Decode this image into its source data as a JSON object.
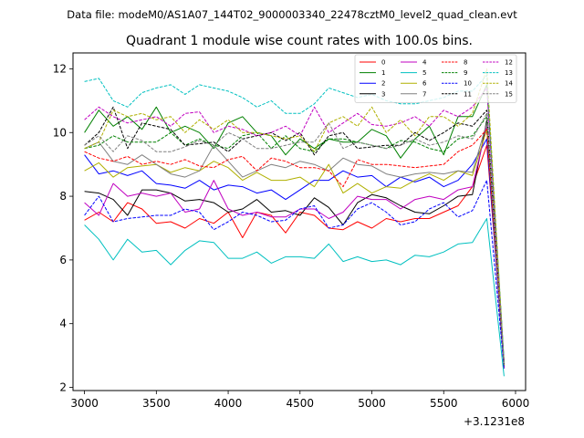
{
  "figure": {
    "suptitle": "Data file: modeM0/AS1A07_144T02_9000003340_22478cztM0_level2_quad_clean.evt"
  },
  "chart_data": {
    "type": "line",
    "title": "Quadrant 1 module wise count rates with 100.0s bins.",
    "xlabel": "",
    "ylabel": "",
    "x_offset_label": "+3.1231e8",
    "xlim": [
      2920,
      6070
    ],
    "ylim": [
      1.9,
      12.5
    ],
    "x_ticks": [
      3000,
      3500,
      4000,
      4500,
      5000,
      5500,
      6000
    ],
    "x_tick_labels": [
      "3000",
      "3500",
      "4000",
      "4500",
      "5000",
      "5500",
      "6000"
    ],
    "y_ticks": [
      2,
      4,
      6,
      8,
      10,
      12
    ],
    "y_tick_labels": [
      "2",
      "4",
      "6",
      "8",
      "10",
      "12"
    ],
    "grid": false,
    "legend_position": "top-right",
    "legend_columns": 4,
    "x": [
      3000,
      3100,
      3200,
      3300,
      3400,
      3500,
      3600,
      3700,
      3800,
      3900,
      4000,
      4100,
      4200,
      4300,
      4400,
      4500,
      4600,
      4700,
      4800,
      4900,
      5000,
      5100,
      5200,
      5300,
      5400,
      5500,
      5600,
      5700,
      5800,
      5920
    ],
    "series": [
      {
        "name": "0",
        "color": "#ff0000",
        "dash": "solid",
        "values": [
          7.25,
          7.5,
          7.2,
          7.8,
          7.6,
          7.15,
          7.2,
          7.0,
          7.3,
          7.15,
          7.5,
          6.7,
          7.5,
          7.4,
          6.85,
          7.5,
          7.4,
          7.0,
          6.95,
          7.2,
          7.0,
          7.3,
          7.2,
          7.3,
          7.3,
          7.5,
          7.7,
          8.3,
          9.6,
          2.8
        ]
      },
      {
        "name": "1",
        "color": "#008000",
        "dash": "solid",
        "values": [
          10.0,
          10.7,
          10.2,
          10.5,
          10.1,
          10.8,
          10.0,
          10.2,
          10.0,
          9.5,
          10.3,
          10.5,
          10.0,
          9.9,
          9.3,
          9.8,
          9.5,
          9.8,
          9.7,
          9.7,
          10.1,
          9.9,
          9.2,
          9.8,
          10.2,
          9.3,
          10.5,
          10.5,
          11.5,
          2.8
        ]
      },
      {
        "name": "2",
        "color": "#0000ff",
        "dash": "solid",
        "values": [
          9.3,
          8.7,
          8.8,
          8.65,
          8.8,
          8.4,
          8.35,
          8.25,
          8.5,
          8.2,
          8.35,
          8.3,
          8.1,
          8.2,
          7.9,
          8.2,
          8.5,
          8.5,
          8.8,
          8.6,
          8.65,
          8.3,
          8.6,
          8.45,
          8.6,
          8.3,
          8.5,
          9.0,
          9.8,
          2.6
        ]
      },
      {
        "name": "3",
        "color": "#000000",
        "dash": "solid",
        "values": [
          8.15,
          8.1,
          7.9,
          7.4,
          8.2,
          8.2,
          8.1,
          7.85,
          7.9,
          7.8,
          7.5,
          7.6,
          7.9,
          7.5,
          7.55,
          7.4,
          7.95,
          7.65,
          7.1,
          7.8,
          8.05,
          7.95,
          7.7,
          7.5,
          7.45,
          7.7,
          8.0,
          8.05,
          10.4,
          2.6
        ]
      },
      {
        "name": "4",
        "color": "#c000c0",
        "dash": "solid",
        "values": [
          7.8,
          7.4,
          8.4,
          8.0,
          8.1,
          8.0,
          8.1,
          7.5,
          7.6,
          8.5,
          7.6,
          7.4,
          7.5,
          7.35,
          7.35,
          7.6,
          7.6,
          7.3,
          7.5,
          8.0,
          7.9,
          7.9,
          7.6,
          7.9,
          8.0,
          7.9,
          8.2,
          8.3,
          10.2,
          2.6
        ]
      },
      {
        "name": "5",
        "color": "#00c0c0",
        "dash": "solid",
        "values": [
          7.1,
          6.65,
          6.0,
          6.65,
          6.25,
          6.3,
          5.85,
          6.3,
          6.6,
          6.55,
          6.05,
          6.05,
          6.25,
          5.9,
          6.1,
          6.1,
          6.05,
          6.5,
          5.95,
          6.1,
          5.95,
          6.0,
          5.85,
          6.15,
          6.1,
          6.25,
          6.5,
          6.55,
          7.3,
          2.35
        ]
      },
      {
        "name": "6",
        "color": "#b0b000",
        "dash": "solid",
        "values": [
          8.8,
          9.05,
          8.6,
          8.9,
          8.95,
          9.0,
          8.75,
          8.9,
          8.8,
          9.1,
          8.9,
          8.5,
          8.75,
          8.5,
          8.5,
          8.6,
          8.3,
          9.0,
          8.1,
          8.4,
          8.1,
          8.3,
          8.25,
          8.5,
          8.7,
          8.5,
          8.8,
          8.65,
          10.1,
          2.7
        ]
      },
      {
        "name": "7",
        "color": "#808080",
        "dash": "solid",
        "values": [
          9.5,
          9.7,
          9.1,
          9.0,
          9.3,
          9.0,
          8.7,
          8.6,
          8.8,
          9.6,
          9.1,
          8.6,
          8.8,
          9.0,
          8.9,
          9.1,
          9.0,
          8.8,
          9.2,
          9.0,
          8.95,
          8.7,
          8.6,
          8.7,
          8.75,
          8.7,
          8.8,
          8.75,
          10.3,
          2.7
        ]
      },
      {
        "name": "8",
        "color": "#ff0000",
        "dash": "dashed",
        "values": [
          9.4,
          9.2,
          9.1,
          9.25,
          9.0,
          9.1,
          9.0,
          9.15,
          8.95,
          8.9,
          9.15,
          9.25,
          8.8,
          9.2,
          9.1,
          8.9,
          8.9,
          8.8,
          8.3,
          9.15,
          9.0,
          9.0,
          8.95,
          8.9,
          8.95,
          9.0,
          9.4,
          9.6,
          10.1,
          2.7
        ]
      },
      {
        "name": "9",
        "color": "#008000",
        "dash": "dashed",
        "values": [
          9.5,
          9.6,
          9.9,
          9.7,
          9.7,
          9.7,
          10.0,
          9.6,
          9.8,
          9.6,
          9.5,
          9.9,
          10.0,
          9.5,
          9.9,
          9.5,
          9.4,
          9.8,
          9.8,
          9.7,
          9.6,
          9.5,
          9.75,
          9.7,
          9.5,
          9.4,
          9.8,
          9.9,
          10.5,
          2.8
        ]
      },
      {
        "name": "10",
        "color": "#0000ff",
        "dash": "dashed",
        "values": [
          7.4,
          8.0,
          7.2,
          7.3,
          7.35,
          7.4,
          7.4,
          7.6,
          7.5,
          6.95,
          7.2,
          7.5,
          7.4,
          7.2,
          7.25,
          7.6,
          7.7,
          7.0,
          7.1,
          7.6,
          7.8,
          7.5,
          7.1,
          7.2,
          7.6,
          7.8,
          7.35,
          7.55,
          8.5,
          2.6
        ]
      },
      {
        "name": "11",
        "color": "#000000",
        "dash": "dashed",
        "values": [
          9.6,
          10.0,
          10.8,
          9.5,
          10.3,
          10.2,
          10.1,
          9.6,
          9.65,
          9.7,
          9.4,
          9.8,
          9.9,
          10.0,
          9.75,
          10.0,
          9.3,
          9.9,
          10.0,
          9.5,
          9.55,
          9.6,
          9.6,
          10.0,
          9.75,
          10.0,
          10.3,
          10.2,
          10.7,
          2.7
        ]
      },
      {
        "name": "12",
        "color": "#c000c0",
        "dash": "dashed",
        "values": [
          10.4,
          10.8,
          10.5,
          10.3,
          10.4,
          10.5,
          10.2,
          10.6,
          10.65,
          10.0,
          10.2,
          10.1,
          9.9,
          10.0,
          10.2,
          9.9,
          10.8,
          10.0,
          10.3,
          10.6,
          10.25,
          10.2,
          10.3,
          10.5,
          10.2,
          10.7,
          10.5,
          10.8,
          11.4,
          2.8
        ]
      },
      {
        "name": "13",
        "color": "#00c0c0",
        "dash": "dashed",
        "values": [
          11.6,
          11.7,
          11.0,
          10.8,
          11.25,
          11.4,
          11.5,
          11.2,
          11.5,
          11.4,
          11.3,
          11.1,
          10.8,
          11.0,
          10.6,
          10.6,
          10.9,
          11.4,
          11.25,
          11.1,
          11.2,
          11.0,
          10.9,
          10.9,
          11.0,
          11.1,
          11.3,
          11.3,
          11.8,
          2.8
        ]
      },
      {
        "name": "14",
        "color": "#b0b000",
        "dash": "dashed",
        "values": [
          9.5,
          9.7,
          10.7,
          10.5,
          10.6,
          10.4,
          10.5,
          10.0,
          10.4,
          10.1,
          10.4,
          10.0,
          10.0,
          9.9,
          9.8,
          9.9,
          9.4,
          10.3,
          10.5,
          10.2,
          10.8,
          10.0,
          10.4,
          9.9,
          10.5,
          10.5,
          10.2,
          10.6,
          12.0,
          2.7
        ]
      },
      {
        "name": "15",
        "color": "#808080",
        "dash": "dashed",
        "values": [
          9.6,
          9.9,
          9.4,
          9.9,
          9.75,
          9.4,
          9.4,
          9.55,
          9.75,
          9.6,
          10.0,
          9.8,
          9.5,
          9.5,
          9.6,
          9.7,
          9.7,
          10.3,
          9.5,
          9.7,
          9.6,
          9.5,
          9.6,
          9.8,
          9.6,
          9.7,
          9.9,
          9.8,
          10.6,
          2.7
        ]
      }
    ]
  }
}
